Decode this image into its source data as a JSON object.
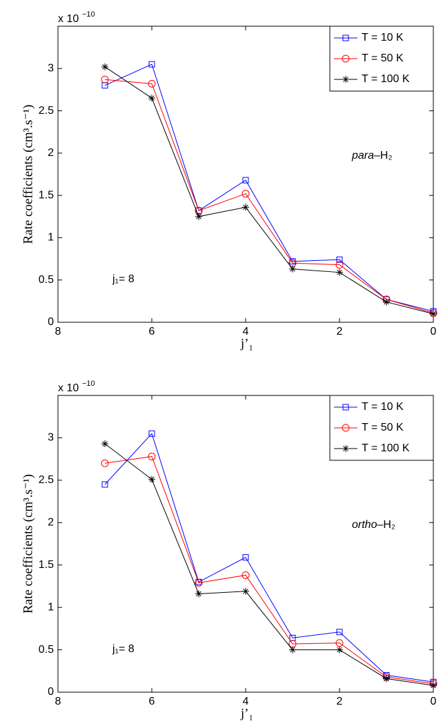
{
  "chart_data": [
    {
      "type": "line",
      "multiplier": "x 10",
      "multiplier_exp": "−10",
      "ylabel": "Rate coefficients (cm³.s⁻¹)",
      "xlabel": "j’₁",
      "label_italic": "para",
      "label_rest": "–H₂",
      "annotation": "j₁= 8",
      "x": [
        7,
        6,
        5,
        4,
        3,
        2,
        1,
        0
      ],
      "xlim": [
        8,
        0
      ],
      "xticks": [
        8,
        6,
        4,
        2,
        0
      ],
      "ylim": [
        0,
        3.5
      ],
      "yticks": [
        0,
        0.5,
        1,
        1.5,
        2,
        2.5,
        3
      ],
      "legend": "upper right",
      "series": [
        {
          "name": "T = 10 K",
          "color": "#0000ff",
          "marker": "square",
          "values": [
            2.8,
            3.05,
            1.32,
            1.68,
            0.72,
            0.74,
            0.27,
            0.13
          ]
        },
        {
          "name": "T = 50 K",
          "color": "#ff0000",
          "marker": "circle",
          "values": [
            2.87,
            2.82,
            1.32,
            1.52,
            0.7,
            0.68,
            0.27,
            0.11
          ]
        },
        {
          "name": "T = 100 K",
          "color": "#000000",
          "marker": "asterisk",
          "values": [
            3.02,
            2.65,
            1.25,
            1.36,
            0.63,
            0.59,
            0.24,
            0.1
          ]
        }
      ]
    },
    {
      "type": "line",
      "multiplier": "x 10",
      "multiplier_exp": "−10",
      "ylabel": "Rate coefficients (cm³.s⁻¹)",
      "xlabel": "j’₁",
      "label_italic": "ortho",
      "label_rest": "–H₂",
      "annotation": "j₁= 8",
      "x": [
        7,
        6,
        5,
        4,
        3,
        2,
        1,
        0
      ],
      "xlim": [
        8,
        0
      ],
      "xticks": [
        8,
        6,
        4,
        2,
        0
      ],
      "ylim": [
        0,
        3.5
      ],
      "yticks": [
        0,
        0.5,
        1,
        1.5,
        2,
        2.5,
        3
      ],
      "legend": "upper right",
      "series": [
        {
          "name": "T = 10 K",
          "color": "#0000ff",
          "marker": "square",
          "values": [
            2.45,
            3.05,
            1.3,
            1.59,
            0.64,
            0.71,
            0.2,
            0.12
          ]
        },
        {
          "name": "T = 50 K",
          "color": "#ff0000",
          "marker": "circle",
          "values": [
            2.7,
            2.78,
            1.29,
            1.38,
            0.57,
            0.58,
            0.18,
            0.1
          ]
        },
        {
          "name": "T = 100 K",
          "color": "#000000",
          "marker": "asterisk",
          "values": [
            2.93,
            2.51,
            1.16,
            1.19,
            0.5,
            0.5,
            0.16,
            0.08
          ]
        }
      ]
    }
  ]
}
